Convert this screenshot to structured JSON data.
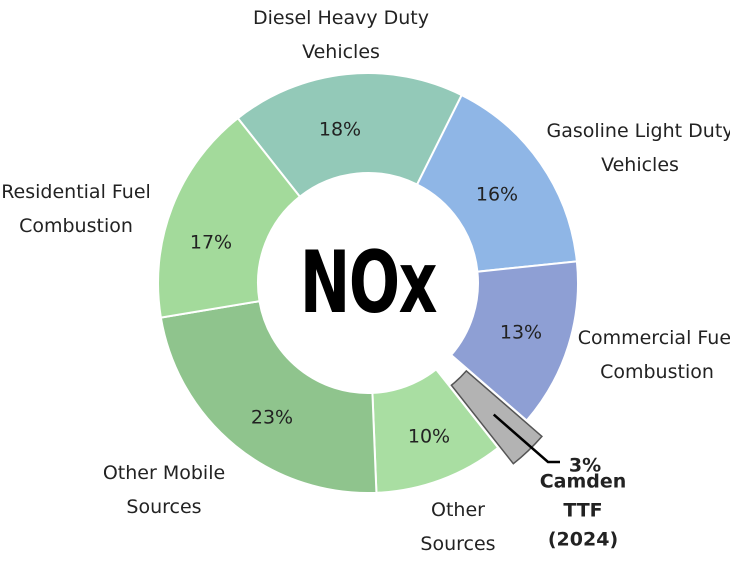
{
  "chart_data": {
    "type": "donut",
    "title": "NOx",
    "categories": [
      "Diesel Heavy Duty Vehicles",
      "Gasoline Light Duty Vehicles",
      "Commercial Fuel Combustion",
      "Camden TTF (2024)",
      "Other Sources",
      "Other Mobile Sources",
      "Residential Fuel Combustion"
    ],
    "values": [
      18,
      16,
      13,
      3,
      10,
      23,
      17
    ],
    "value_labels": [
      "18%",
      "16%",
      "13%",
      "3%",
      "10%",
      "23%",
      "17%"
    ],
    "colors": [
      "#93c9b8",
      "#8fb6e6",
      "#8e9fd4",
      "#b3b3b3",
      "#a9dea2",
      "#8fc48d",
      "#a3da9b"
    ]
  }
}
